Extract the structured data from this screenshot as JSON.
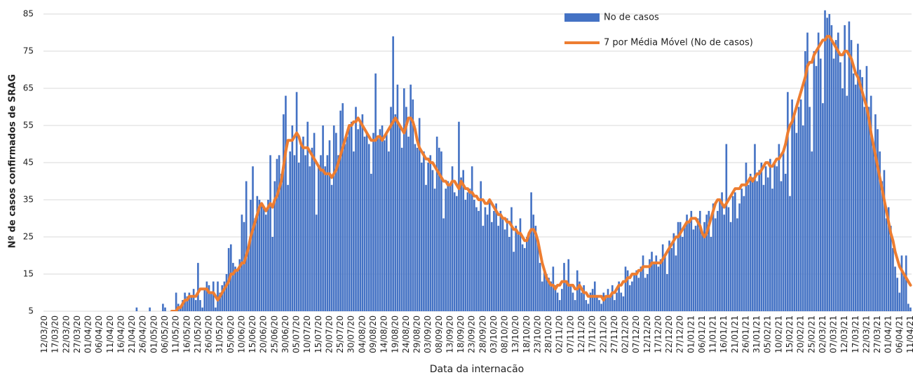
{
  "chart_data": {
    "type": "bar",
    "y_label": "Nº de casos confirmados de SRAG",
    "x_label": "Data da internacão",
    "ylim": [
      5,
      87
    ],
    "yticks": [
      5,
      15,
      25,
      35,
      45,
      55,
      65,
      75,
      85
    ],
    "grid": true,
    "legend": "top-right",
    "categories": [
      "12/03/20",
      null,
      null,
      null,
      null,
      "17/03/20",
      null,
      null,
      null,
      null,
      "22/03/20",
      null,
      null,
      null,
      null,
      "27/03/20",
      null,
      null,
      null,
      null,
      "01/04/20",
      null,
      null,
      null,
      null,
      "06/04/20",
      null,
      null,
      null,
      null,
      "11/04/20",
      null,
      null,
      null,
      null,
      "16/04/20",
      null,
      null,
      null,
      null,
      "21/04/20",
      null,
      null,
      null,
      null,
      "26/04/20",
      null,
      null,
      null,
      null,
      "01/05/20",
      null,
      null,
      null,
      null,
      "06/05/20",
      null,
      null,
      null,
      null,
      "11/05/20",
      null,
      null,
      null,
      null,
      "16/05/20",
      null,
      null,
      null,
      null,
      "21/05/20",
      null,
      null,
      null,
      null,
      "26/05/20",
      null,
      null,
      null,
      null,
      "31/05/20",
      null,
      null,
      null,
      null,
      "05/06/20",
      null,
      null,
      null,
      null,
      "10/06/20",
      null,
      null,
      null,
      null,
      "15/06/20",
      null,
      null,
      null,
      null,
      "20/06/20",
      null,
      null,
      null,
      null,
      "25/06/20",
      null,
      null,
      null,
      null,
      "30/06/20",
      null,
      null,
      null,
      null,
      "05/07/20",
      null,
      null,
      null,
      null,
      "10/07/20",
      null,
      null,
      null,
      null,
      "15/07/20",
      null,
      null,
      null,
      null,
      "20/07/20",
      null,
      null,
      null,
      null,
      "25/07/20",
      null,
      null,
      null,
      null,
      "30/07/20",
      null,
      null,
      null,
      null,
      "04/08/20",
      null,
      null,
      null,
      null,
      "09/08/20",
      null,
      null,
      null,
      null,
      "14/08/20",
      null,
      null,
      null,
      null,
      "19/08/20",
      null,
      null,
      null,
      null,
      "24/08/20",
      null,
      null,
      null,
      null,
      "29/08/20",
      null,
      null,
      null,
      null,
      "03/09/20",
      null,
      null,
      null,
      null,
      "08/09/20",
      null,
      null,
      null,
      null,
      "13/09/20",
      null,
      null,
      null,
      null,
      "18/09/20",
      null,
      null,
      null,
      null,
      "23/09/20",
      null,
      null,
      null,
      null,
      "28/09/20",
      null,
      null,
      null,
      null,
      "03/10/20",
      null,
      null,
      null,
      null,
      "08/10/20",
      null,
      null,
      null,
      null,
      "13/10/20",
      null,
      null,
      null,
      null,
      "18/10/20",
      null,
      null,
      null,
      null,
      "23/10/20",
      null,
      null,
      null,
      null,
      "28/10/20",
      null,
      null,
      null,
      null,
      "02/11/20",
      null,
      null,
      null,
      null,
      "07/11/20",
      null,
      null,
      null,
      null,
      "12/11/20",
      null,
      null,
      null,
      null,
      "17/11/20",
      null,
      null,
      null,
      null,
      "22/11/20",
      null,
      null,
      null,
      null,
      "27/11/20",
      null,
      null,
      null,
      null,
      "02/12/20",
      null,
      null,
      null,
      null,
      "07/12/20",
      null,
      null,
      null,
      null,
      "12/12/20",
      null,
      null,
      null,
      null,
      "17/12/20",
      null,
      null,
      null,
      null,
      "22/12/20",
      null,
      null,
      null,
      null,
      "27/12/20",
      null,
      null,
      null,
      null,
      "01/01/21",
      null,
      null,
      null,
      null,
      "06/01/21",
      null,
      null,
      null,
      null,
      "11/01/21",
      null,
      null,
      null,
      null,
      "16/01/21",
      null,
      null,
      null,
      null,
      "21/01/21",
      null,
      null,
      null,
      null,
      "26/01/21",
      null,
      null,
      null,
      null,
      "31/01/21",
      null,
      null,
      null,
      null,
      "05/02/21",
      null,
      null,
      null,
      null,
      "10/02/21",
      null,
      null,
      null,
      null,
      "15/02/21",
      null,
      null,
      null,
      null,
      "20/02/21",
      null,
      null,
      null,
      null,
      "25/02/21",
      null,
      null,
      null,
      null,
      "02/03/21",
      null,
      null,
      null,
      null,
      "07/03/21",
      null,
      null,
      null,
      null,
      "12/03/21",
      null,
      null,
      null,
      null,
      "17/03/21",
      null,
      null,
      null,
      null,
      "22/03/21",
      null,
      null,
      null,
      null,
      "27/03/21",
      null,
      null,
      null,
      null,
      "01/04/21",
      null,
      null,
      null,
      null,
      "06/04/21",
      null,
      null,
      null,
      null,
      "11/04/21"
    ],
    "series": [
      {
        "name": "No de casos",
        "type": "bar",
        "color": "#4472c4",
        "values": [
          1,
          0,
          1,
          2,
          1,
          0,
          1,
          2,
          1,
          1,
          2,
          1,
          1,
          2,
          1,
          0,
          2,
          1,
          1,
          2,
          1,
          2,
          1,
          1,
          2,
          1,
          2,
          1,
          2,
          1,
          2,
          1,
          2,
          3,
          1,
          2,
          1,
          2,
          3,
          2,
          2,
          3,
          6,
          2,
          3,
          2,
          1,
          3,
          6,
          2,
          3,
          2,
          4,
          3,
          7,
          6,
          3,
          4,
          5,
          3,
          10,
          7,
          6,
          8,
          10,
          9,
          10,
          9,
          11,
          8,
          18,
          8,
          6,
          11,
          13,
          12,
          10,
          13,
          6,
          13,
          10,
          12,
          13,
          15,
          22,
          23,
          18,
          17,
          16,
          19,
          31,
          29,
          40,
          22,
          35,
          44,
          30,
          36,
          35,
          34,
          33,
          31,
          35,
          47,
          25,
          40,
          46,
          47,
          42,
          58,
          63,
          39,
          48,
          55,
          47,
          64,
          45,
          50,
          52,
          47,
          56,
          44,
          49,
          53,
          31,
          44,
          47,
          55,
          44,
          47,
          51,
          39,
          55,
          53,
          47,
          59,
          61,
          50,
          52,
          55,
          56,
          48,
          60,
          54,
          56,
          58,
          52,
          53,
          50,
          42,
          53,
          69,
          52,
          54,
          55,
          51,
          53,
          48,
          60,
          79,
          58,
          66,
          55,
          49,
          65,
          60,
          52,
          66,
          62,
          50,
          49,
          57,
          45,
          48,
          39,
          45,
          47,
          43,
          38,
          52,
          49,
          48,
          30,
          38,
          40,
          39,
          44,
          37,
          36,
          56,
          41,
          43,
          35,
          37,
          38,
          44,
          35,
          33,
          32,
          40,
          28,
          33,
          31,
          35,
          29,
          32,
          34,
          28,
          32,
          30,
          27,
          30,
          25,
          33,
          21,
          28,
          26,
          30,
          23,
          22,
          25,
          26,
          37,
          31,
          28,
          24,
          18,
          13,
          16,
          15,
          14,
          13,
          17,
          12,
          10,
          8,
          11,
          18,
          13,
          19,
          12,
          10,
          8,
          16,
          13,
          10,
          12,
          8,
          7,
          10,
          11,
          13,
          9,
          8,
          7,
          10,
          9,
          11,
          9,
          12,
          8,
          10,
          13,
          10,
          9,
          17,
          16,
          12,
          13,
          15,
          16,
          14,
          17,
          20,
          14,
          15,
          19,
          21,
          18,
          20,
          17,
          19,
          23,
          20,
          15,
          24,
          22,
          26,
          20,
          29,
          29,
          25,
          28,
          31,
          29,
          32,
          27,
          28,
          30,
          32,
          26,
          29,
          31,
          32,
          25,
          34,
          30,
          32,
          35,
          37,
          31,
          50,
          33,
          29,
          36,
          37,
          30,
          34,
          38,
          36,
          45,
          39,
          42,
          41,
          50,
          40,
          43,
          45,
          39,
          44,
          41,
          46,
          38,
          45,
          44,
          50,
          40,
          48,
          42,
          64,
          36,
          62,
          58,
          53,
          60,
          62,
          55,
          75,
          80,
          60,
          48,
          75,
          71,
          80,
          73,
          61,
          86,
          84,
          85,
          82,
          73,
          78,
          80,
          72,
          65,
          82,
          63,
          83,
          78,
          69,
          66,
          77,
          70,
          68,
          60,
          71,
          60,
          63,
          50,
          58,
          54,
          48,
          40,
          43,
          30,
          33,
          28,
          22,
          17,
          14,
          10,
          20,
          15,
          20,
          7,
          6
        ]
      },
      {
        "name": "7 por Média Móvel (No de casos)",
        "type": "line",
        "color": "#ed7d31",
        "values": [
          null,
          null,
          null,
          null,
          null,
          null,
          1,
          1,
          1,
          1,
          1,
          1,
          1,
          1,
          1,
          1,
          1,
          1,
          1,
          1,
          1,
          1,
          1,
          1,
          1,
          2,
          2,
          2,
          2,
          2,
          2,
          2,
          2,
          2,
          2,
          2,
          2,
          2,
          2,
          2,
          2,
          2,
          3,
          3,
          3,
          3,
          3,
          3,
          3,
          3,
          3,
          3,
          3,
          3,
          4,
          4,
          4,
          4,
          5,
          5,
          5,
          6,
          6,
          7,
          8,
          8,
          9,
          9,
          9,
          9,
          10,
          11,
          11,
          11,
          11,
          10,
          10,
          10,
          9,
          8,
          9,
          10,
          11,
          12,
          13,
          15,
          15,
          16,
          16,
          17,
          18,
          18,
          20,
          22,
          25,
          27,
          29,
          31,
          33,
          34,
          33,
          32,
          33,
          34,
          33,
          35,
          36,
          38,
          40,
          44,
          48,
          51,
          51,
          51,
          52,
          53,
          52,
          50,
          49,
          49,
          49,
          48,
          47,
          46,
          45,
          44,
          43,
          43,
          42,
          42,
          42,
          41,
          42,
          43,
          45,
          47,
          49,
          51,
          53,
          55,
          55,
          56,
          56,
          57,
          56,
          55,
          54,
          53,
          52,
          51,
          51,
          51,
          52,
          52,
          51,
          52,
          53,
          54,
          55,
          56,
          57,
          56,
          55,
          54,
          53,
          55,
          57,
          57,
          56,
          54,
          51,
          49,
          48,
          47,
          46,
          46,
          45,
          45,
          44,
          43,
          42,
          41,
          40,
          40,
          39,
          39,
          40,
          40,
          39,
          38,
          40,
          39,
          38,
          38,
          37,
          37,
          36,
          36,
          35,
          35,
          35,
          34,
          34,
          35,
          34,
          33,
          32,
          31,
          31,
          30,
          30,
          29,
          29,
          28,
          27,
          27,
          26,
          26,
          25,
          24,
          24,
          26,
          27,
          27,
          26,
          24,
          21,
          18,
          16,
          14,
          13,
          12,
          12,
          11,
          12,
          12,
          13,
          13,
          13,
          12,
          12,
          12,
          11,
          11,
          12,
          11,
          10,
          10,
          9,
          9,
          9,
          9,
          9,
          9,
          9,
          8,
          9,
          9,
          9,
          10,
          10,
          11,
          12,
          12,
          13,
          13,
          14,
          14,
          15,
          15,
          15,
          16,
          16,
          17,
          17,
          17,
          17,
          18,
          18,
          18,
          18,
          18,
          19,
          20,
          21,
          22,
          23,
          24,
          25,
          25,
          26,
          27,
          28,
          29,
          29,
          30,
          30,
          30,
          29,
          28,
          26,
          25,
          26,
          28,
          30,
          32,
          34,
          35,
          35,
          34,
          33,
          34,
          35,
          36,
          37,
          38,
          38,
          38,
          39,
          39,
          39,
          40,
          41,
          40,
          41,
          42,
          42,
          43,
          44,
          45,
          45,
          44,
          44,
          45,
          46,
          46,
          47,
          48,
          50,
          53,
          55,
          56,
          58,
          60,
          62,
          64,
          66,
          68,
          71,
          72,
          72,
          74,
          75,
          76,
          77,
          78,
          78,
          79,
          79,
          78,
          77,
          76,
          75,
          74,
          74,
          75,
          75,
          74,
          73,
          71,
          69,
          68,
          66,
          64,
          62,
          60,
          57,
          53,
          50,
          47,
          44,
          41,
          38,
          35,
          32,
          29,
          26,
          24,
          21,
          19,
          17,
          16,
          15,
          14,
          13,
          12
        ]
      }
    ]
  }
}
